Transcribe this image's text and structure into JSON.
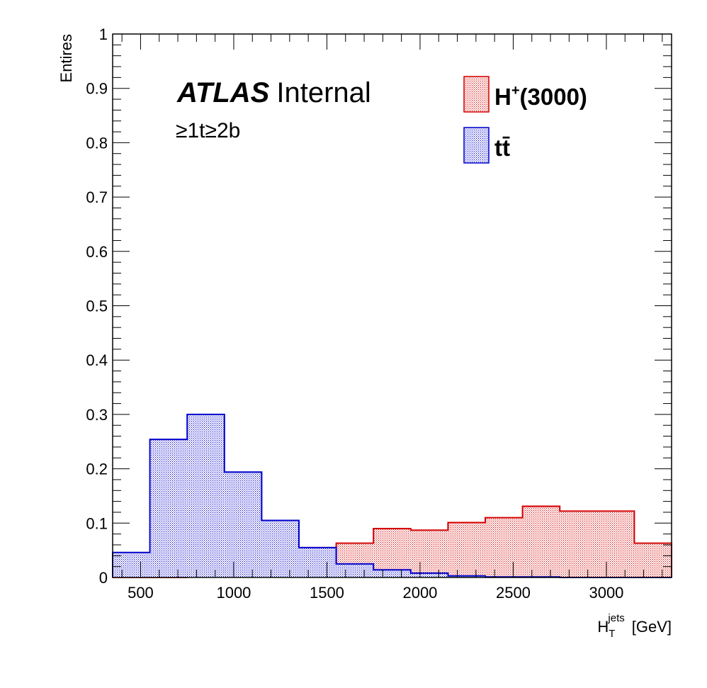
{
  "chart_data": {
    "type": "histogram",
    "bin_edges": [
      350,
      550,
      750,
      950,
      1150,
      1350,
      1550,
      1750,
      1950,
      2150,
      2350,
      2550,
      2750,
      2950,
      3150,
      3350
    ],
    "series": [
      {
        "name": "H⁺(3000)",
        "legend_main": "H",
        "legend_sup": "+",
        "legend_rest": "(3000)",
        "color": "#d40000",
        "values": [
          0.0,
          0.0,
          0.008,
          0.018,
          0.032,
          0.055,
          0.063,
          0.09,
          0.087,
          0.101,
          0.11,
          0.131,
          0.122,
          0.122,
          0.063
        ]
      },
      {
        "name": "tt̄",
        "legend_main": "tt̄",
        "color": "#0000cc",
        "values": [
          0.046,
          0.254,
          0.3,
          0.194,
          0.105,
          0.055,
          0.025,
          0.014,
          0.008,
          0.003,
          0.001,
          0.001,
          0.0,
          0.0,
          0.0
        ]
      }
    ],
    "ylabel": "Entires",
    "xlabel": {
      "main": "H",
      "sub": "T",
      "sup": "jets",
      "unit": "[GeV]"
    },
    "xlim": [
      350,
      3350
    ],
    "ylim": [
      0,
      1
    ],
    "x_ticks": [
      {
        "value": 500,
        "label": "500"
      },
      {
        "value": 1000,
        "label": "1000"
      },
      {
        "value": 1500,
        "label": "1500"
      },
      {
        "value": 2000,
        "label": "2000"
      },
      {
        "value": 2500,
        "label": "2500"
      },
      {
        "value": 3000,
        "label": "3000"
      }
    ],
    "y_ticks": [
      {
        "value": 0,
        "label": "0"
      },
      {
        "value": 0.1,
        "label": "0.1"
      },
      {
        "value": 0.2,
        "label": "0.2"
      },
      {
        "value": 0.3,
        "label": "0.3"
      },
      {
        "value": 0.4,
        "label": "0.4"
      },
      {
        "value": 0.5,
        "label": "0.5"
      },
      {
        "value": 0.6,
        "label": "0.6"
      },
      {
        "value": 0.7,
        "label": "0.7"
      },
      {
        "value": 0.8,
        "label": "0.8"
      },
      {
        "value": 0.9,
        "label": "0.9"
      },
      {
        "value": 1,
        "label": "1"
      }
    ],
    "annotations": {
      "atlas_bold": "ATLAS",
      "atlas_rest": "Internal",
      "region": "≥1t≥2b"
    },
    "legend_position": "top-right",
    "grid": false
  }
}
